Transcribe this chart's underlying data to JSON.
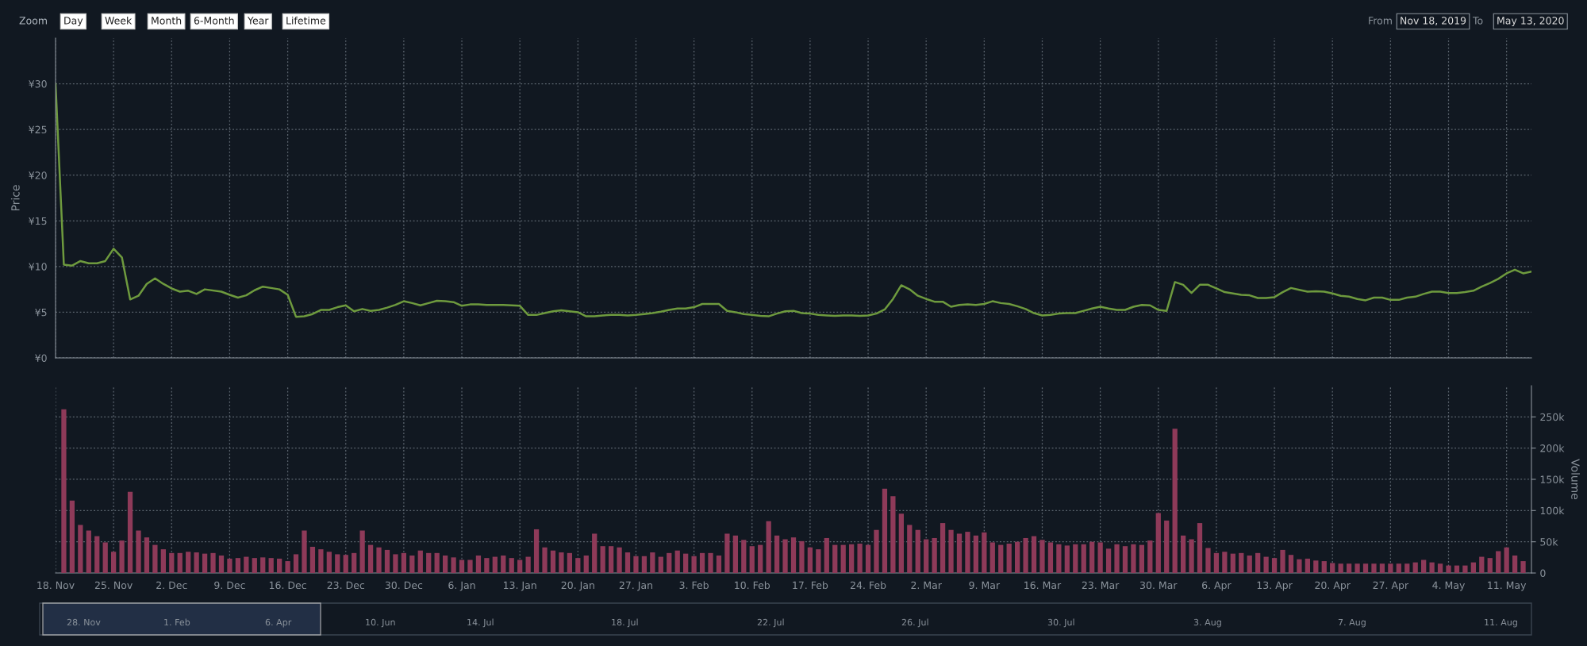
{
  "chart_data": [
    {
      "type": "line",
      "ylabel": "Price",
      "tick_labels": "y",
      "grid": true,
      "annotations": [
        "Zoom",
        "Day",
        "Week",
        "Month",
        "6-Month",
        "Year",
        "Lifetime",
        "From",
        "Nov 18, 2019",
        "To",
        "May 13, 2020",
        "28. Nov",
        "1. Feb",
        "6. Apr",
        "10. Jun",
        "14. Jul",
        "18. Jul",
        "22. Jul",
        "26. Jul",
        "30. Jul",
        "3. Aug",
        "7. Aug",
        "11. Aug"
      ],
      "xlim": [
        "2019-11-18",
        "2020-05-14"
      ],
      "xticks": [
        {
          "value": "2019-11-18",
          "label": null
        },
        {
          "value": "2019-11-25",
          "label": null
        },
        {
          "value": "2019-12-02",
          "label": null
        },
        {
          "value": "2019-12-09",
          "label": null
        },
        {
          "value": "2019-12-16",
          "label": null
        },
        {
          "value": "2019-12-23",
          "label": null
        },
        {
          "value": "2019-12-30",
          "label": null
        },
        {
          "value": "2020-01-06",
          "label": null
        },
        {
          "value": "2020-01-13",
          "label": null
        },
        {
          "value": "2020-01-20",
          "label": null
        },
        {
          "value": "2020-01-27",
          "label": null
        },
        {
          "value": "2020-02-03",
          "label": null
        },
        {
          "value": "2020-02-10",
          "label": null
        },
        {
          "value": "2020-02-17",
          "label": null
        },
        {
          "value": "2020-02-24",
          "label": null
        },
        {
          "value": "2020-03-02",
          "label": null
        },
        {
          "value": "2020-03-09",
          "label": null
        },
        {
          "value": "2020-03-16",
          "label": null
        },
        {
          "value": "2020-03-23",
          "label": null
        },
        {
          "value": "2020-03-30",
          "label": null
        },
        {
          "value": "2020-04-06",
          "label": null
        },
        {
          "value": "2020-04-13",
          "label": null
        },
        {
          "value": "2020-04-20",
          "label": null
        },
        {
          "value": "2020-04-27",
          "label": null
        },
        {
          "value": "2020-05-04",
          "label": null
        },
        {
          "value": "2020-05-11",
          "label": null
        }
      ],
      "ylim": [
        0,
        35
      ],
      "yticks": [
        {
          "value": 0,
          "label": "¥0"
        },
        {
          "value": 5,
          "label": "¥5"
        },
        {
          "value": 10,
          "label": "¥10"
        },
        {
          "value": 15,
          "label": "¥15"
        },
        {
          "value": 20,
          "label": "¥20"
        },
        {
          "value": 25,
          "label": "¥25"
        },
        {
          "value": 30,
          "label": "¥30"
        }
      ],
      "series": [
        {
          "color": "#6e9a3e",
          "x": [
            "2019-11-18",
            "2019-11-19",
            "2019-11-20",
            "2019-11-21",
            "2019-11-22",
            "2019-11-23",
            "2019-11-24",
            "2019-11-25",
            "2019-11-26",
            "2019-11-27",
            "2019-11-28",
            "2019-11-29",
            "2019-11-30",
            "2019-12-01",
            "2019-12-02",
            "2019-12-03",
            "2019-12-04",
            "2019-12-05",
            "2019-12-06",
            "2019-12-08",
            "2019-12-09",
            "2019-12-10",
            "2019-12-11",
            "2019-12-12",
            "2019-12-13",
            "2019-12-14",
            "2019-12-15",
            "2019-12-16",
            "2019-12-17",
            "2019-12-18",
            "2019-12-19",
            "2019-12-20",
            "2019-12-21",
            "2019-12-22",
            "2019-12-23",
            "2019-12-24",
            "2019-12-25",
            "2019-12-26",
            "2019-12-27",
            "2019-12-28",
            "2019-12-29",
            "2019-12-30",
            "2019-12-31",
            "2020-01-01",
            "2020-01-02",
            "2020-01-03",
            "2020-01-04",
            "2020-01-05",
            "2020-01-06",
            "2020-01-07",
            "2020-01-08",
            "2020-01-09",
            "2020-01-10",
            "2020-01-11",
            "2020-01-13",
            "2020-01-14",
            "2020-01-15",
            "2020-01-16",
            "2020-01-17",
            "2020-01-18",
            "2020-01-19",
            "2020-01-20",
            "2020-01-21",
            "2020-01-22",
            "2020-01-23",
            "2020-01-24",
            "2020-01-25",
            "2020-01-26",
            "2020-01-27",
            "2020-01-28",
            "2020-01-29",
            "2020-01-30",
            "2020-01-31",
            "2020-02-01",
            "2020-02-02",
            "2020-02-03",
            "2020-02-04",
            "2020-02-05",
            "2020-02-06",
            "2020-02-07",
            "2020-02-08",
            "2020-02-09",
            "2020-02-10",
            "2020-02-11",
            "2020-02-12",
            "2020-02-13",
            "2020-02-14",
            "2020-02-15",
            "2020-02-16",
            "2020-02-17",
            "2020-02-18",
            "2020-02-19",
            "2020-02-20",
            "2020-02-21",
            "2020-02-22",
            "2020-02-23",
            "2020-02-24",
            "2020-02-25",
            "2020-02-26",
            "2020-02-27",
            "2020-02-28",
            "2020-02-29",
            "2020-03-01",
            "2020-03-02",
            "2020-03-03",
            "2020-03-04",
            "2020-03-05",
            "2020-03-06",
            "2020-03-07",
            "2020-03-08",
            "2020-03-09",
            "2020-03-10",
            "2020-03-11",
            "2020-03-12",
            "2020-03-13",
            "2020-03-14",
            "2020-03-15",
            "2020-03-16",
            "2020-03-17",
            "2020-03-18",
            "2020-03-19",
            "2020-03-20",
            "2020-03-21",
            "2020-03-22",
            "2020-03-23",
            "2020-03-24",
            "2020-03-25",
            "2020-03-26",
            "2020-03-27",
            "2020-03-28",
            "2020-03-29",
            "2020-03-30",
            "2020-03-31",
            "2020-04-01",
            "2020-04-02",
            "2020-04-03",
            "2020-04-04",
            "2020-04-05",
            "2020-04-06",
            "2020-04-07",
            "2020-04-08",
            "2020-04-09",
            "2020-04-10",
            "2020-04-11",
            "2020-04-12",
            "2020-04-13",
            "2020-04-14",
            "2020-04-15",
            "2020-04-16",
            "2020-04-17",
            "2020-04-18",
            "2020-04-19",
            "2020-04-20",
            "2020-04-21",
            "2020-04-22",
            "2020-04-23",
            "2020-04-24",
            "2020-04-25",
            "2020-04-26",
            "2020-04-27",
            "2020-04-28",
            "2020-04-29",
            "2020-04-30",
            "2020-05-01",
            "2020-05-02",
            "2020-05-03",
            "2020-05-04",
            "2020-05-05",
            "2020-05-06",
            "2020-05-07",
            "2020-05-08",
            "2020-05-09",
            "2020-05-10",
            "2020-05-11",
            "2020-05-12",
            "2020-05-13",
            "2020-05-14"
          ],
          "values": [
            30.0,
            10.2,
            10.1,
            10.6,
            10.35,
            10.35,
            10.6,
            11.95,
            11.0,
            6.4,
            6.8,
            8.1,
            8.7,
            8.1,
            7.6,
            7.25,
            7.35,
            7.0,
            7.5,
            7.25,
            6.9,
            6.6,
            6.85,
            7.4,
            7.8,
            7.65,
            7.5,
            6.9,
            4.5,
            4.55,
            4.8,
            5.25,
            5.25,
            5.55,
            5.75,
            5.1,
            5.35,
            5.15,
            5.25,
            5.5,
            5.8,
            6.2,
            6.0,
            5.75,
            6.0,
            6.25,
            6.2,
            6.1,
            5.7,
            5.85,
            5.85,
            5.8,
            5.8,
            5.8,
            5.7,
            4.7,
            4.7,
            4.9,
            5.1,
            5.2,
            5.1,
            5.0,
            4.55,
            4.55,
            4.65,
            4.7,
            4.7,
            4.65,
            4.7,
            4.8,
            4.9,
            5.05,
            5.25,
            5.4,
            5.4,
            5.55,
            5.9,
            5.9,
            5.9,
            5.15,
            5.0,
            4.8,
            4.7,
            4.6,
            4.55,
            4.85,
            5.1,
            5.15,
            4.9,
            4.85,
            4.7,
            4.65,
            4.6,
            4.65,
            4.65,
            4.6,
            4.65,
            4.85,
            5.3,
            6.45,
            7.95,
            7.5,
            6.8,
            6.45,
            6.15,
            6.15,
            5.6,
            5.8,
            5.85,
            5.8,
            5.9,
            6.2,
            6.0,
            5.9,
            5.65,
            5.35,
            4.9,
            4.65,
            4.7,
            4.85,
            4.9,
            4.9,
            5.15,
            5.4,
            5.6,
            5.4,
            5.25,
            5.25,
            5.6,
            5.8,
            5.75,
            5.25,
            5.15,
            8.3,
            8.0,
            7.1,
            8.0,
            8.0,
            7.6,
            7.2,
            7.05,
            6.9,
            6.85,
            6.55,
            6.55,
            6.65,
            7.2,
            7.65,
            7.45,
            7.25,
            7.3,
            7.25,
            7.05,
            6.8,
            6.7,
            6.45,
            6.3,
            6.6,
            6.6,
            6.35,
            6.35,
            6.6,
            6.7,
            7.0,
            7.25,
            7.25,
            7.1,
            7.1,
            7.2,
            7.35,
            7.8,
            8.2,
            8.65,
            9.25,
            9.65,
            9.25,
            9.45
          ]
        }
      ]
    },
    {
      "type": "bar",
      "y2label": "Volume",
      "tick_labels": "x",
      "grid": true,
      "xlim": [
        "2019-11-18",
        "2020-05-14"
      ],
      "xticks": [
        {
          "value": "2019-11-18",
          "label": "18. Nov"
        },
        {
          "value": "2019-11-25",
          "label": "25. Nov"
        },
        {
          "value": "2019-12-02",
          "label": "2. Dec"
        },
        {
          "value": "2019-12-09",
          "label": "9. Dec"
        },
        {
          "value": "2019-12-16",
          "label": "16. Dec"
        },
        {
          "value": "2019-12-23",
          "label": "23. Dec"
        },
        {
          "value": "2019-12-30",
          "label": "30. Dec"
        },
        {
          "value": "2020-01-06",
          "label": "6. Jan"
        },
        {
          "value": "2020-01-13",
          "label": "13. Jan"
        },
        {
          "value": "2020-01-20",
          "label": "20. Jan"
        },
        {
          "value": "2020-01-27",
          "label": "27. Jan"
        },
        {
          "value": "2020-02-03",
          "label": "3. Feb"
        },
        {
          "value": "2020-02-10",
          "label": "10. Feb"
        },
        {
          "value": "2020-02-17",
          "label": "17. Feb"
        },
        {
          "value": "2020-02-24",
          "label": "24. Feb"
        },
        {
          "value": "2020-03-02",
          "label": "2. Mar"
        },
        {
          "value": "2020-03-09",
          "label": "9. Mar"
        },
        {
          "value": "2020-03-16",
          "label": "16. Mar"
        },
        {
          "value": "2020-03-23",
          "label": "23. Mar"
        },
        {
          "value": "2020-03-30",
          "label": "30. Mar"
        },
        {
          "value": "2020-04-06",
          "label": "6. Apr"
        },
        {
          "value": "2020-04-13",
          "label": "13. Apr"
        },
        {
          "value": "2020-04-20",
          "label": "20. Apr"
        },
        {
          "value": "2020-04-27",
          "label": "27. Apr"
        },
        {
          "value": "2020-05-04",
          "label": "4. May"
        },
        {
          "value": "2020-05-11",
          "label": "11. May"
        }
      ],
      "y2lim": [
        0,
        300000
      ],
      "y2ticks": [
        {
          "value": 0,
          "label": "0"
        },
        {
          "value": 50000,
          "label": "50k"
        },
        {
          "value": 100000,
          "label": "100k"
        },
        {
          "value": 150000,
          "label": "150k"
        },
        {
          "value": 200000,
          "label": "200k"
        },
        {
          "value": 250000,
          "label": "250k"
        }
      ],
      "series": [
        {
          "color": "#8e3a59",
          "axis": "y2",
          "x": [
            "2019-11-19",
            "2019-11-20",
            "2019-11-21",
            "2019-11-22",
            "2019-11-23",
            "2019-11-24",
            "2019-11-25",
            "2019-11-26",
            "2019-11-27",
            "2019-11-28",
            "2019-11-29",
            "2019-11-30",
            "2019-12-01",
            "2019-12-02",
            "2019-12-03",
            "2019-12-04",
            "2019-12-05",
            "2019-12-06",
            "2019-12-07",
            "2019-12-08",
            "2019-12-09",
            "2019-12-10",
            "2019-12-11",
            "2019-12-12",
            "2019-12-13",
            "2019-12-14",
            "2019-12-15",
            "2019-12-16",
            "2019-12-17",
            "2019-12-18",
            "2019-12-19",
            "2019-12-20",
            "2019-12-21",
            "2019-12-22",
            "2019-12-23",
            "2019-12-24",
            "2019-12-25",
            "2019-12-26",
            "2019-12-27",
            "2019-12-28",
            "2019-12-29",
            "2019-12-30",
            "2019-12-31",
            "2020-01-01",
            "2020-01-02",
            "2020-01-03",
            "2020-01-04",
            "2020-01-05",
            "2020-01-06",
            "2020-01-07",
            "2020-01-08",
            "2020-01-09",
            "2020-01-10",
            "2020-01-11",
            "2020-01-12",
            "2020-01-13",
            "2020-01-14",
            "2020-01-15",
            "2020-01-16",
            "2020-01-17",
            "2020-01-18",
            "2020-01-19",
            "2020-01-20",
            "2020-01-21",
            "2020-01-22",
            "2020-01-23",
            "2020-01-24",
            "2020-01-25",
            "2020-01-26",
            "2020-01-27",
            "2020-01-28",
            "2020-01-29",
            "2020-01-30",
            "2020-01-31",
            "2020-02-01",
            "2020-02-02",
            "2020-02-03",
            "2020-02-04",
            "2020-02-05",
            "2020-02-06",
            "2020-02-07",
            "2020-02-08",
            "2020-02-09",
            "2020-02-10",
            "2020-02-11",
            "2020-02-12",
            "2020-02-13",
            "2020-02-14",
            "2020-02-15",
            "2020-02-16",
            "2020-02-17",
            "2020-02-18",
            "2020-02-19",
            "2020-02-20",
            "2020-02-21",
            "2020-02-22",
            "2020-02-23",
            "2020-02-24",
            "2020-02-25",
            "2020-02-26",
            "2020-02-27",
            "2020-02-28",
            "2020-02-29",
            "2020-03-01",
            "2020-03-02",
            "2020-03-03",
            "2020-03-04",
            "2020-03-05",
            "2020-03-06",
            "2020-03-07",
            "2020-03-08",
            "2020-03-09",
            "2020-03-10",
            "2020-03-11",
            "2020-03-12",
            "2020-03-13",
            "2020-03-14",
            "2020-03-15",
            "2020-03-16",
            "2020-03-17",
            "2020-03-18",
            "2020-03-19",
            "2020-03-20",
            "2020-03-21",
            "2020-03-22",
            "2020-03-23",
            "2020-03-24",
            "2020-03-25",
            "2020-03-26",
            "2020-03-27",
            "2020-03-28",
            "2020-03-29",
            "2020-03-30",
            "2020-03-31",
            "2020-04-01",
            "2020-04-02",
            "2020-04-03",
            "2020-04-04",
            "2020-04-05",
            "2020-04-06",
            "2020-04-07",
            "2020-04-08",
            "2020-04-09",
            "2020-04-10",
            "2020-04-11",
            "2020-04-12",
            "2020-04-13",
            "2020-04-14",
            "2020-04-15",
            "2020-04-16",
            "2020-04-17",
            "2020-04-18",
            "2020-04-19",
            "2020-04-20",
            "2020-04-21",
            "2020-04-22",
            "2020-04-23",
            "2020-04-24",
            "2020-04-25",
            "2020-04-26",
            "2020-04-27",
            "2020-04-28",
            "2020-04-29",
            "2020-04-30",
            "2020-05-01",
            "2020-05-02",
            "2020-05-03",
            "2020-05-04",
            "2020-05-05",
            "2020-05-06",
            "2020-05-07",
            "2020-05-08",
            "2020-05-09",
            "2020-05-10",
            "2020-05-11",
            "2020-05-12",
            "2020-05-13"
          ],
          "values": [
            262000,
            116000,
            77000,
            68000,
            59000,
            49000,
            34000,
            52000,
            130000,
            68000,
            57000,
            45000,
            38000,
            32000,
            32000,
            34000,
            33000,
            31000,
            32000,
            28000,
            23000,
            24000,
            26000,
            24000,
            25000,
            24000,
            23000,
            19000,
            30000,
            68000,
            42000,
            38000,
            34000,
            30000,
            29000,
            32000,
            68000,
            45000,
            41000,
            37000,
            30000,
            32000,
            28000,
            36000,
            32000,
            32000,
            28000,
            25000,
            21000,
            21000,
            28000,
            24000,
            26000,
            28000,
            24000,
            21000,
            26000,
            70000,
            41000,
            36000,
            33000,
            32000,
            24000,
            28000,
            63000,
            43000,
            43000,
            41000,
            33000,
            27000,
            27000,
            33000,
            26000,
            32000,
            36000,
            31000,
            27000,
            32000,
            32000,
            28000,
            63000,
            60000,
            53000,
            43000,
            45000,
            83000,
            60000,
            54000,
            57000,
            51000,
            41000,
            38000,
            56000,
            45000,
            45000,
            46000,
            47000,
            45000,
            69000,
            135000,
            123000,
            95000,
            77000,
            69000,
            54000,
            56000,
            80000,
            69000,
            63000,
            66000,
            60000,
            65000,
            49000,
            45000,
            47000,
            50000,
            56000,
            59000,
            53000,
            49000,
            46000,
            44000,
            46000,
            46000,
            50000,
            49000,
            39000,
            46000,
            43000,
            46000,
            45000,
            52000,
            96000,
            84000,
            231000,
            60000,
            54000,
            80000,
            40000,
            32000,
            34000,
            31000,
            32000,
            28000,
            32000,
            26000,
            24000,
            37000,
            29000,
            22000,
            23000,
            20000,
            19000,
            16000,
            15000,
            15000,
            15000,
            15000,
            15000,
            15000,
            15000,
            15000,
            15000,
            17000,
            21000,
            17000,
            15000,
            12000,
            12000,
            12000,
            17000,
            26000,
            24000,
            35000,
            41000,
            28000,
            19000
          ]
        }
      ]
    }
  ]
}
